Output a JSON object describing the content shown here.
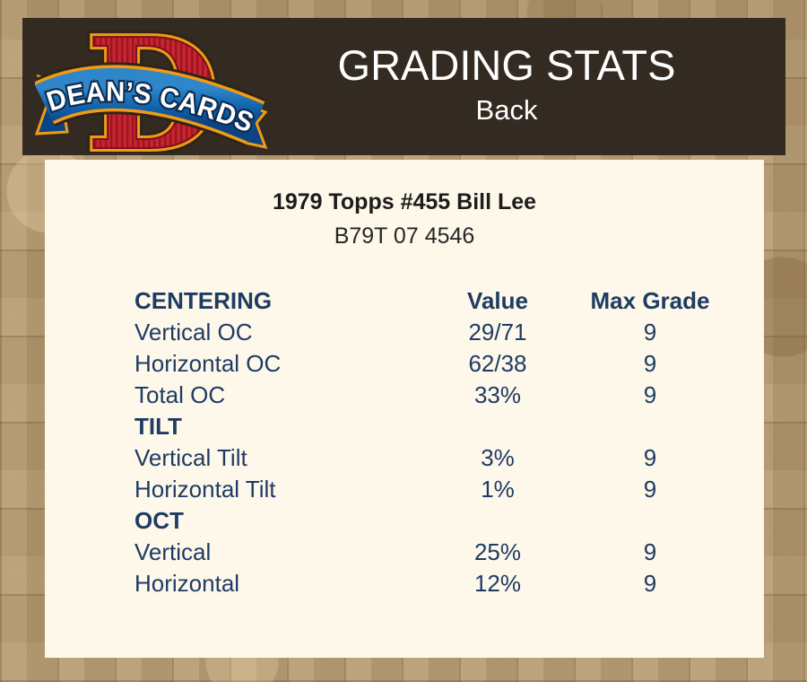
{
  "header": {
    "title": "GRADING STATS",
    "side": "Back",
    "logo": {
      "brand": "DEAN’S CARDS",
      "monogram": "D"
    }
  },
  "card": {
    "title": "1979 Topps #455 Bill Lee",
    "serial": "B79T 07 4546"
  },
  "table": {
    "headers": {
      "value": "Value",
      "max_grade": "Max Grade"
    },
    "sections": [
      {
        "name": "CENTERING",
        "rows": [
          {
            "label": "Vertical OC",
            "value": "29/71",
            "max_grade": "9"
          },
          {
            "label": "Horizontal OC",
            "value": "62/38",
            "max_grade": "9"
          },
          {
            "label": "Total OC",
            "value": "33%",
            "max_grade": "9"
          }
        ]
      },
      {
        "name": "TILT",
        "rows": [
          {
            "label": "Vertical Tilt",
            "value": "3%",
            "max_grade": "9"
          },
          {
            "label": "Horizontal Tilt",
            "value": "1%",
            "max_grade": "9"
          }
        ]
      },
      {
        "name": "OCT",
        "rows": [
          {
            "label": "Vertical",
            "value": "25%",
            "max_grade": "9"
          },
          {
            "label": "Horizontal",
            "value": "12%",
            "max_grade": "9"
          }
        ]
      }
    ]
  },
  "colors": {
    "background_tan": "#b19872",
    "header_brown": "#332b21",
    "panel_cream": "#fdf8ea",
    "text_navy": "#1f3b63",
    "title_black": "#1c1c1c",
    "logo_red": "#c62530",
    "logo_red_dark": "#9c1423",
    "ribbon_blue": "#0d5196",
    "ribbon_blue_light": "#2f86c9",
    "gold": "#ef9b16",
    "white": "#ffffff"
  }
}
